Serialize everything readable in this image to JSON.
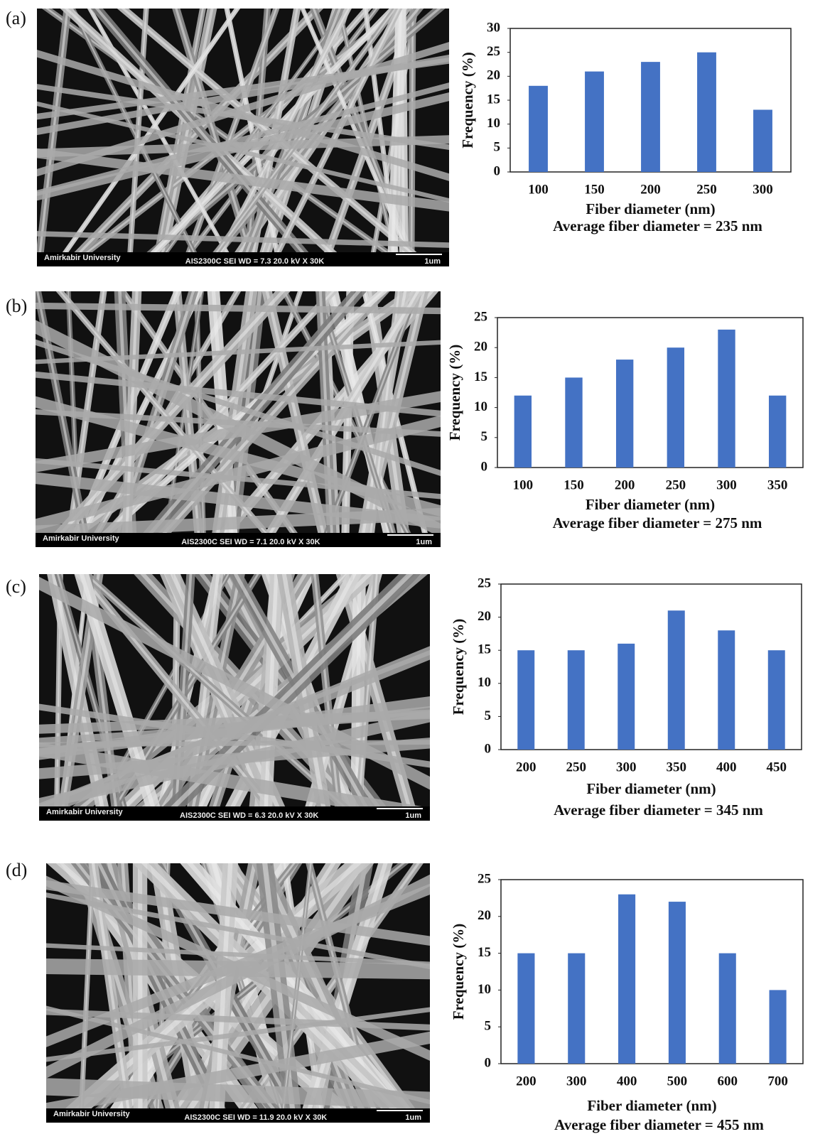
{
  "panels": [
    {
      "label": "(a)",
      "sem": {
        "institution": "Amirkabir University",
        "info": "AIS2300C   SEI   WD = 7.3   20.0 kV  X 30K",
        "scale": "1um"
      }
    },
    {
      "label": "(b)",
      "sem": {
        "institution": "Amirkabir University",
        "info": "AIS2300C   SEI   WD = 7.1   20.0 kV  X 30K",
        "scale": "1um"
      }
    },
    {
      "label": "(c)",
      "sem": {
        "institution": "Amirkabir University",
        "info": "AIS2300C   SEI   WD = 6.3   20.0 kV  X 30K",
        "scale": "1um"
      }
    },
    {
      "label": "(d)",
      "sem": {
        "institution": "Amirkabir University",
        "info": "AIS2300C   SEI   WD = 11.9   20.0 kV  X 30K",
        "scale": "1um"
      }
    }
  ],
  "chart_data": [
    {
      "type": "bar",
      "x_label": "Fiber diameter (nm)",
      "y_label": "Frequency (%)",
      "annotation": "Average fiber diameter = 235 nm",
      "categories": [
        "100",
        "150",
        "200",
        "250",
        "300"
      ],
      "values": [
        18,
        21,
        23,
        25,
        13
      ],
      "color": "#4472c4",
      "ylim": [
        0,
        30
      ],
      "yticks": [
        0,
        5,
        10,
        15,
        20,
        25,
        30
      ]
    },
    {
      "type": "bar",
      "x_label": "Fiber diameter (nm)",
      "y_label": "Frequency (%)",
      "annotation": "Average fiber diameter = 275 nm",
      "categories": [
        "100",
        "150",
        "200",
        "250",
        "300",
        "350"
      ],
      "values": [
        12,
        15,
        18,
        20,
        23,
        12
      ],
      "color": "#4472c4",
      "ylim": [
        0,
        25
      ],
      "yticks": [
        0,
        5,
        10,
        15,
        20,
        25
      ]
    },
    {
      "type": "bar",
      "x_label": "Fiber diameter (nm)",
      "y_label": "Frequency (%)",
      "annotation": "Average fiber diameter = 345 nm",
      "categories": [
        "200",
        "250",
        "300",
        "350",
        "400",
        "450"
      ],
      "values": [
        15,
        15,
        16,
        21,
        18,
        15
      ],
      "color": "#4472c4",
      "ylim": [
        0,
        25
      ],
      "yticks": [
        0,
        5,
        10,
        15,
        20,
        25
      ]
    },
    {
      "type": "bar",
      "x_label": "Fiber diameter (nm)",
      "y_label": "Frequency (%)",
      "annotation": "Average fiber diameter = 455 nm",
      "categories": [
        "200",
        "300",
        "400",
        "500",
        "600",
        "700"
      ],
      "values": [
        15,
        15,
        23,
        22,
        15,
        10
      ],
      "color": "#4472c4",
      "ylim": [
        0,
        25
      ],
      "yticks": [
        0,
        5,
        10,
        15,
        20,
        25
      ]
    }
  ]
}
